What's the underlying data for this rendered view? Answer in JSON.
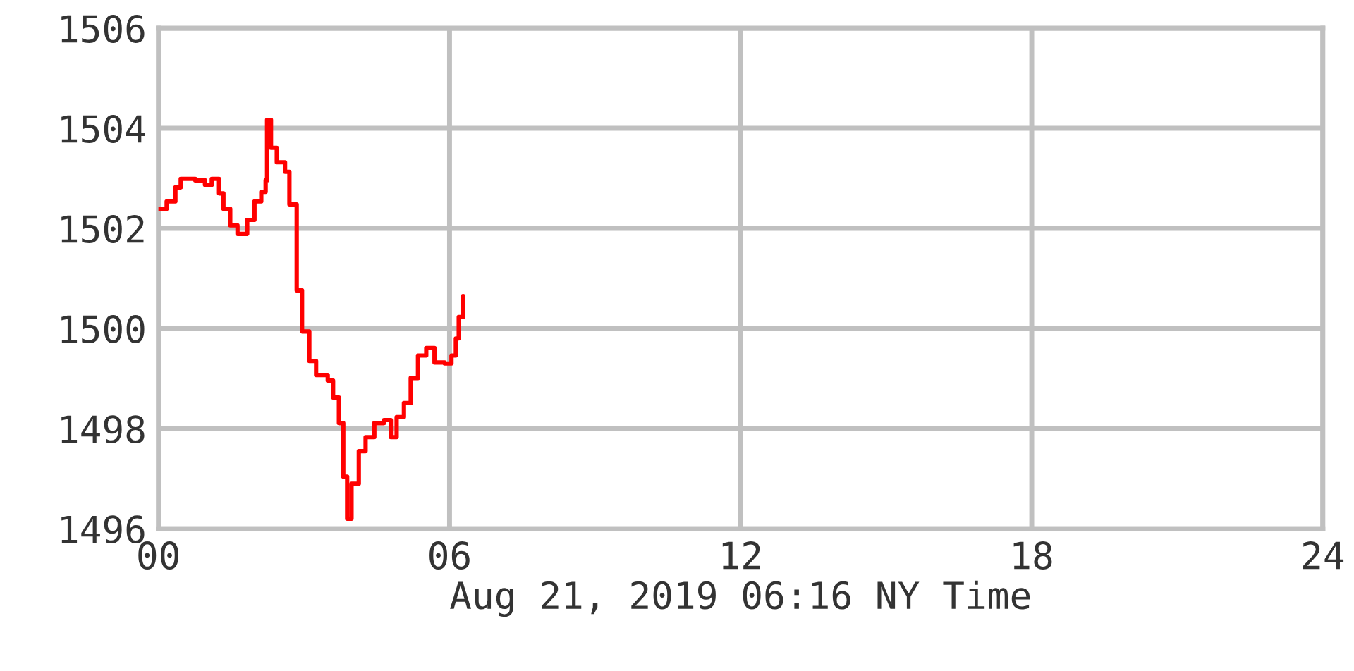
{
  "chart_data": {
    "type": "step",
    "xlabel": "Aug 21, 2019 06:16 NY Time",
    "x": [
      0,
      0.17,
      0.35,
      0.46,
      0.76,
      0.96,
      1.1,
      1.25,
      1.34,
      1.48,
      1.63,
      1.83,
      1.98,
      2.12,
      2.21,
      2.24,
      2.32,
      2.44,
      2.61,
      2.7,
      2.85,
      2.96,
      3.11,
      3.25,
      3.49,
      3.6,
      3.72,
      3.81,
      3.89,
      3.98,
      4.13,
      4.27,
      4.45,
      4.65,
      4.79,
      4.91,
      5.06,
      5.2,
      5.35,
      5.52,
      5.69,
      5.9,
      6.04,
      6.13,
      6.19,
      6.28
    ],
    "series": [
      {
        "color": "#ff0000",
        "values": [
          1502.39,
          1502.54,
          1502.82,
          1502.99,
          1502.96,
          1502.87,
          1502.99,
          1502.7,
          1502.39,
          1502.06,
          1501.89,
          1502.17,
          1502.54,
          1502.73,
          1502.96,
          1504.17,
          1503.61,
          1503.32,
          1503.13,
          1502.48,
          1500.76,
          1499.94,
          1499.35,
          1499.07,
          1498.96,
          1498.62,
          1498.11,
          1497.04,
          1496.2,
          1496.9,
          1497.55,
          1497.83,
          1498.11,
          1498.17,
          1497.83,
          1498.23,
          1498.51,
          1499.01,
          1499.46,
          1499.61,
          1499.32,
          1499.3,
          1499.46,
          1499.8,
          1500.23,
          1500.65
        ]
      }
    ],
    "xlim": [
      0,
      24
    ],
    "xticks": [
      {
        "value": 0,
        "label": "00"
      },
      {
        "value": 6,
        "label": "06"
      },
      12,
      18,
      24
    ],
    "ylim": [
      1496,
      1506
    ],
    "yticks": [
      1496,
      1498,
      1500,
      1502,
      1504,
      1506
    ],
    "grid": true,
    "marker": "none",
    "line_style": "solid"
  }
}
